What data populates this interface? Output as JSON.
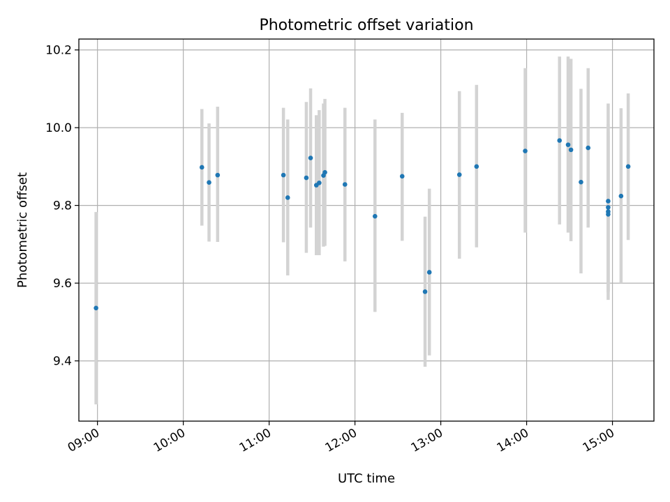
{
  "chart_data": {
    "type": "scatter",
    "title": "Photometric offset variation",
    "xlabel": "UTC time",
    "ylabel": "Photometric offset",
    "x_tick_labels": [
      "09:00",
      "10:00",
      "11:00",
      "12:00",
      "13:00",
      "14:00",
      "15:00"
    ],
    "y_tick_labels": [
      "9.4",
      "9.6",
      "9.8",
      "10.0",
      "10.2"
    ],
    "xlim": [
      "08:47",
      "15:29"
    ],
    "ylim": [
      9.245,
      10.228
    ],
    "grid": true,
    "colors": {
      "marker": "#1f77b4",
      "errorbar": "#d3d3d3",
      "grid": "#b0b0b0",
      "axes": "#000000"
    },
    "points": [
      {
        "x": "08:59",
        "y": 9.536,
        "err_low": 9.288,
        "err_high": 9.783
      },
      {
        "x": "10:13",
        "y": 9.898,
        "err_low": 9.748,
        "err_high": 10.048
      },
      {
        "x": "10:18",
        "y": 9.859,
        "err_low": 9.707,
        "err_high": 10.011
      },
      {
        "x": "10:24",
        "y": 9.878,
        "err_low": 9.706,
        "err_high": 10.054
      },
      {
        "x": "11:10",
        "y": 9.878,
        "err_low": 9.705,
        "err_high": 10.051
      },
      {
        "x": "11:13",
        "y": 9.82,
        "err_low": 9.62,
        "err_high": 10.021
      },
      {
        "x": "11:26",
        "y": 9.871,
        "err_low": 9.678,
        "err_high": 10.066
      },
      {
        "x": "11:29",
        "y": 9.922,
        "err_low": 9.743,
        "err_high": 10.101
      },
      {
        "x": "11:33",
        "y": 9.852,
        "err_low": 9.672,
        "err_high": 10.032
      },
      {
        "x": "11:35",
        "y": 9.858,
        "err_low": 9.672,
        "err_high": 10.045
      },
      {
        "x": "11:38",
        "y": 9.877,
        "err_low": 9.694,
        "err_high": 10.062
      },
      {
        "x": "11:39",
        "y": 9.885,
        "err_low": 9.696,
        "err_high": 10.074
      },
      {
        "x": "11:53",
        "y": 9.854,
        "err_low": 9.656,
        "err_high": 10.051
      },
      {
        "x": "12:14",
        "y": 9.772,
        "err_low": 9.526,
        "err_high": 10.021
      },
      {
        "x": "12:33",
        "y": 9.875,
        "err_low": 9.709,
        "err_high": 10.038
      },
      {
        "x": "12:49",
        "y": 9.578,
        "err_low": 9.385,
        "err_high": 9.771
      },
      {
        "x": "12:52",
        "y": 9.628,
        "err_low": 9.414,
        "err_high": 9.843
      },
      {
        "x": "13:13",
        "y": 9.879,
        "err_low": 9.663,
        "err_high": 10.094
      },
      {
        "x": "13:25",
        "y": 9.9,
        "err_low": 9.692,
        "err_high": 10.11
      },
      {
        "x": "13:59",
        "y": 9.94,
        "err_low": 9.73,
        "err_high": 10.153
      },
      {
        "x": "14:23",
        "y": 9.967,
        "err_low": 9.751,
        "err_high": 10.183
      },
      {
        "x": "14:29",
        "y": 9.956,
        "err_low": 9.73,
        "err_high": 10.183
      },
      {
        "x": "14:31",
        "y": 9.943,
        "err_low": 9.708,
        "err_high": 10.177
      },
      {
        "x": "14:38",
        "y": 9.86,
        "err_low": 9.625,
        "err_high": 10.1
      },
      {
        "x": "14:43",
        "y": 9.948,
        "err_low": 9.743,
        "err_high": 10.153
      },
      {
        "x": "14:57",
        "y": 9.811,
        "err_low": 9.557,
        "err_high": 10.062
      },
      {
        "x": "14:57",
        "y": 9.795,
        "err_low": 9.578,
        "err_high": 10.01
      },
      {
        "x": "14:57",
        "y": 9.784,
        "err_low": 9.58,
        "err_high": 9.99
      },
      {
        "x": "14:57",
        "y": 9.777,
        "err_low": 9.576,
        "err_high": 9.978
      },
      {
        "x": "15:06",
        "y": 9.824,
        "err_low": 9.6,
        "err_high": 10.05
      },
      {
        "x": "15:11",
        "y": 9.9,
        "err_low": 9.711,
        "err_high": 10.088
      }
    ]
  }
}
